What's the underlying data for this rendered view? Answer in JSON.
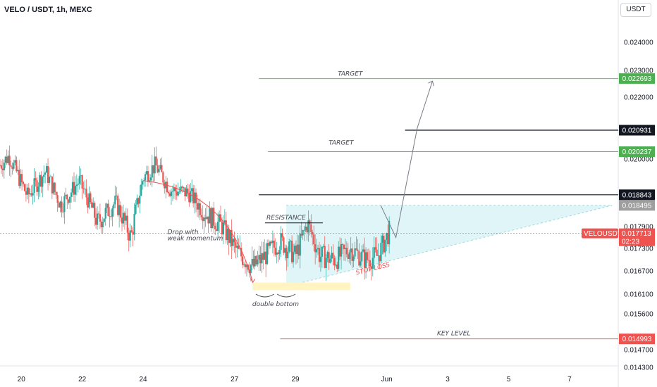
{
  "header": {
    "title": "VELO / USDT, 1h, MEXC"
  },
  "currency_button": "USDT",
  "colors": {
    "up": "#26a69a",
    "down": "#ef5350",
    "green_line": "#4caf50",
    "black_line": "#131722",
    "red_line": "#ef5350",
    "triangle_fill": "#e0f5f7",
    "support_fill": "#fff4c2"
  },
  "chart_data": {
    "type": "candlestick",
    "title": "VELO / USDT, 1h, MEXC",
    "x_ticks": [
      {
        "label": "20",
        "t": 0
      },
      {
        "label": "22",
        "t": 2
      },
      {
        "label": "24",
        "t": 4
      },
      {
        "label": "27",
        "t": 7
      },
      {
        "label": "29",
        "t": 9
      },
      {
        "label": "Jun",
        "t": 12
      },
      {
        "label": "3",
        "t": 14
      },
      {
        "label": "5",
        "t": 16
      },
      {
        "label": "7",
        "t": 18
      }
    ],
    "y_ticks": [
      "0.024000",
      "0.023000",
      "0.022000",
      "0.020000",
      "0.017900",
      "0.017300",
      "0.016700",
      "0.016100",
      "0.015600",
      "0.014700",
      "0.014300"
    ],
    "ylim": [
      0.0141,
      0.0247
    ],
    "xlim": [
      -0.7,
      19.6
    ],
    "series_path_days": [
      -0.7,
      -0.4,
      0.2,
      0.8,
      1.3,
      1.9,
      2.5,
      3.1,
      3.6,
      4.0,
      4.4,
      4.9,
      5.5,
      6.0,
      6.6,
      7.1,
      7.6,
      8.0,
      8.5,
      9.0,
      9.4,
      9.8,
      10.3,
      10.8,
      11.3,
      11.7,
      12.1
    ],
    "series_path_prices": [
      0.0198,
      0.0201,
      0.0188,
      0.0196,
      0.0185,
      0.0193,
      0.018,
      0.0186,
      0.0176,
      0.0194,
      0.0198,
      0.019,
      0.0189,
      0.0183,
      0.0179,
      0.0172,
      0.0168,
      0.0171,
      0.0175,
      0.0171,
      0.018,
      0.0171,
      0.017,
      0.0173,
      0.017,
      0.0171,
      0.0178
    ],
    "levels": [
      {
        "label": "0.022693",
        "price": 0.022693,
        "kind": "green",
        "from_t": 7.8,
        "name": "TARGET"
      },
      {
        "label": "0.020931",
        "price": 0.020931,
        "kind": "black",
        "from_t": 12.6,
        "name": ""
      },
      {
        "label": "0.020237",
        "price": 0.020237,
        "kind": "green",
        "from_t": 8.1,
        "name": "TARGET"
      },
      {
        "label": "0.018843",
        "price": 0.018843,
        "kind": "black",
        "from_t": 7.8,
        "name": ""
      },
      {
        "label": "0.014993",
        "price": 0.014993,
        "kind": "red",
        "from_t": 8.5,
        "name": "KEY LEVEL"
      }
    ],
    "triangle": {
      "x1": 8.7,
      "top": 0.018495,
      "x2": 19.4,
      "bottom_start": 0.0163
    },
    "resistance_price": 0.018,
    "support_zone": {
      "t1": 7.6,
      "t2": 10.8,
      "p1": 0.0164,
      "p2": 0.0162
    },
    "current_price": {
      "symbol": "VELOUSDT",
      "price": "0.017713",
      "countdown": "02:23",
      "value": 0.017713
    },
    "triangle_top_badge": "0.018495",
    "projection": [
      {
        "t": 11.8,
        "p": 0.0185
      },
      {
        "t": 12.3,
        "p": 0.0176
      },
      {
        "t": 13.0,
        "p": 0.021
      },
      {
        "t": 13.5,
        "p": 0.0226
      }
    ]
  },
  "annotations": {
    "target_upper": "TARGET",
    "target_lower": "TARGET",
    "resistance": "RESISTANCE",
    "drop_line1": "Drop with",
    "drop_line2": "weak momentum",
    "stop_loss": "STOP LOSS",
    "double_bottom": "double bottom",
    "key_level": "KEY LEVEL"
  }
}
